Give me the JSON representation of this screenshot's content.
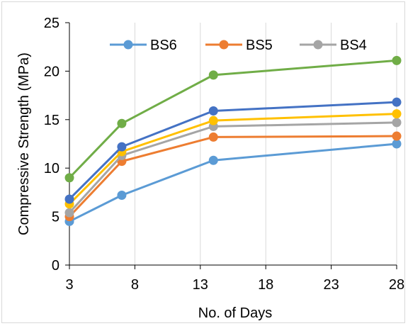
{
  "chart_data": {
    "type": "line",
    "xlabel": "No. of Days",
    "ylabel": "Compressive Strength (MPa)",
    "xlim": [
      3,
      28
    ],
    "ylim": [
      0,
      25
    ],
    "x_ticks": [
      "3",
      "8",
      "13",
      "18",
      "23",
      "28"
    ],
    "y_ticks": [
      "0",
      "5",
      "10",
      "15",
      "20",
      "25"
    ],
    "x_tick_values": [
      3,
      8,
      13,
      18,
      23,
      28
    ],
    "y_tick_values": [
      0,
      5,
      10,
      15,
      20,
      25
    ],
    "grid": "vertical",
    "legend_position": "top",
    "x": [
      3,
      7,
      14,
      28
    ],
    "series": [
      {
        "name": "BS6",
        "color": "#5b9bd5",
        "values": [
          4.5,
          7.2,
          10.8,
          12.5
        ]
      },
      {
        "name": "BS5",
        "color": "#ed7d31",
        "values": [
          5.0,
          10.7,
          13.2,
          13.3
        ]
      },
      {
        "name": "BS4",
        "color": "#a5a5a5",
        "values": [
          5.4,
          11.3,
          14.3,
          14.7
        ]
      },
      {
        "name": "",
        "color": "#ffc000",
        "values": [
          6.3,
          11.7,
          14.9,
          15.6
        ]
      },
      {
        "name": "",
        "color": "#4472c4",
        "values": [
          6.8,
          12.2,
          15.9,
          16.8
        ]
      },
      {
        "name": "",
        "color": "#70ad47",
        "values": [
          9.0,
          14.6,
          19.6,
          21.1
        ]
      }
    ]
  }
}
